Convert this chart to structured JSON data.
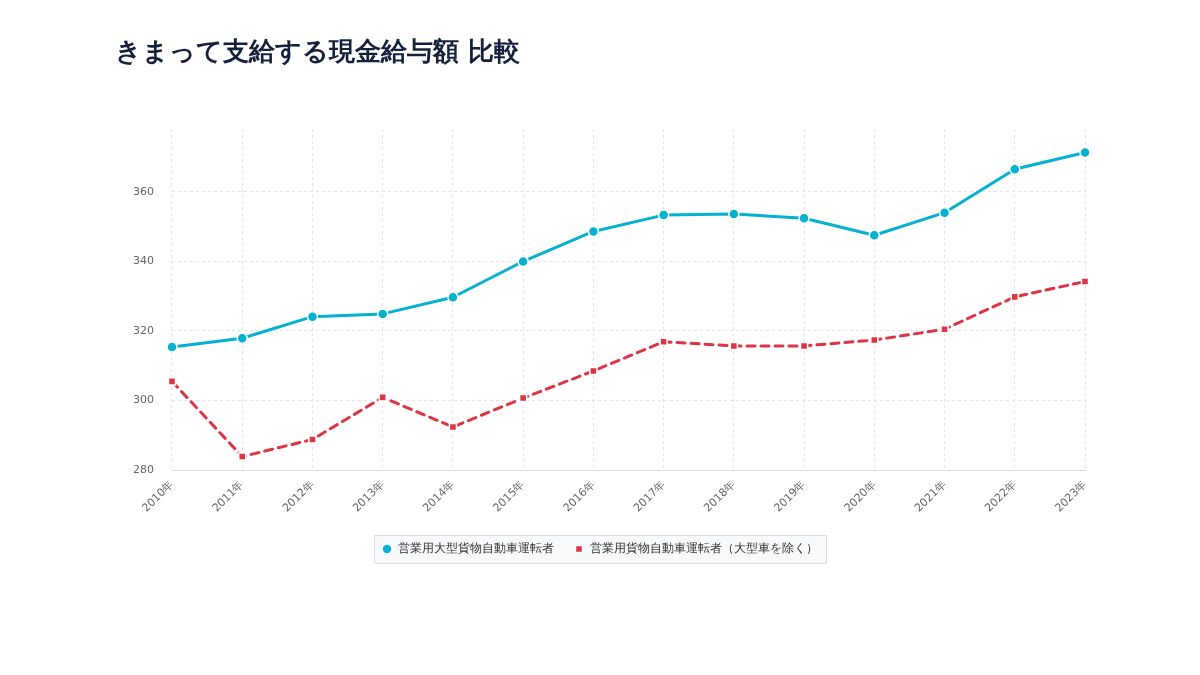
{
  "chart_data": {
    "type": "line",
    "title": "きまって支給する現金給与額 比較",
    "categories": [
      "2010年",
      "2011年",
      "2012年",
      "2013年",
      "2014年",
      "2015年",
      "2016年",
      "2017年",
      "2018年",
      "2019年",
      "2020年",
      "2021年",
      "2022年",
      "2023年"
    ],
    "series": [
      {
        "name": "営業用大型貨物自動車運転者",
        "color": "#06b0d0",
        "marker": "circle",
        "line_style": "solid",
        "values": [
          315.4,
          317.9,
          324.1,
          324.9,
          329.7,
          340.0,
          348.6,
          353.3,
          353.6,
          352.4,
          347.5,
          354.0,
          366.5,
          371.3
        ]
      },
      {
        "name": "営業用貨物自動車運転者（大型車を除く）",
        "color": "#dc3545",
        "marker": "square",
        "line_style": "dashed",
        "values": [
          305.5,
          283.9,
          288.8,
          300.9,
          292.4,
          300.7,
          308.5,
          316.9,
          315.7,
          315.7,
          317.4,
          320.5,
          329.8,
          334.2
        ]
      }
    ],
    "ylim": [
      280,
      378
    ],
    "yticks": [
      280,
      300,
      320,
      340,
      360
    ],
    "grid": true,
    "legend": "bottom"
  }
}
